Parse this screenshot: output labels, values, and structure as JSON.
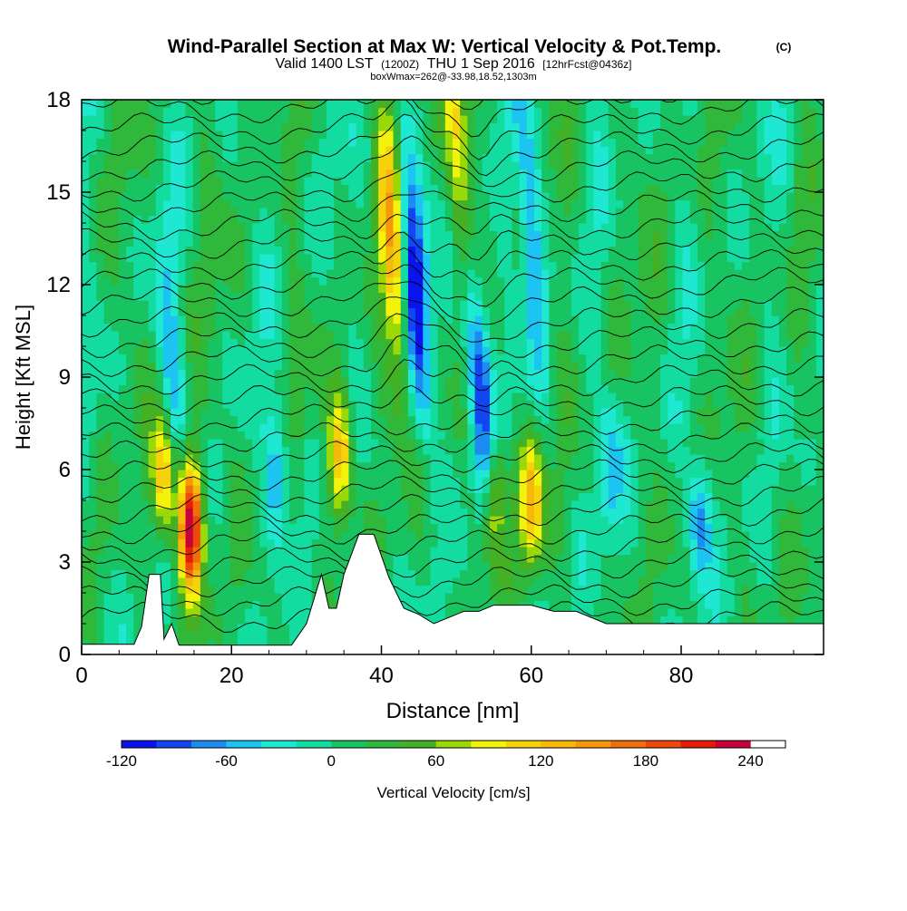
{
  "chart_data": {
    "type": "heatmap",
    "title": "Wind-Parallel Section at Max W: Vertical Velocity & Pot.Temp.",
    "title_mark": "(C)",
    "subtitle_main": "Valid 1400 LST",
    "subtitle_utc": "(1200Z)",
    "subtitle_date": "THU 1 Sep 2016",
    "subtitle_fcst": "[12hrFcst@0436z]",
    "subtitle2": "boxWmax=262@-33.98,18.52,1303m",
    "xlabel": "Distance [nm]",
    "ylabel": "Height [Kft MSL]",
    "xlim": [
      0,
      99
    ],
    "ylim": [
      0,
      18
    ],
    "x_ticks": [
      0,
      20,
      40,
      60,
      80
    ],
    "y_ticks": [
      0,
      3,
      6,
      9,
      12,
      15,
      18
    ],
    "colorbar": {
      "label": "Vertical Velocity [cm/s]",
      "ticks": [
        -120,
        -60,
        0,
        60,
        120,
        180,
        240
      ],
      "levels": [
        -120,
        -100,
        -80,
        -60,
        -40,
        -20,
        0,
        20,
        40,
        60,
        80,
        100,
        120,
        140,
        160,
        180,
        200,
        220,
        240,
        260
      ],
      "colors": [
        "#0a14ee",
        "#1246f0",
        "#1a8cf2",
        "#1cc4f2",
        "#1ee8d2",
        "#12dca0",
        "#18c462",
        "#30b83a",
        "#44b024",
        "#9ad808",
        "#f2f20a",
        "#f6d20a",
        "#f6b80a",
        "#f6980a",
        "#f26e0a",
        "#ee480a",
        "#e61c0a",
        "#c8003c"
      ]
    },
    "terrain_kft": [
      [
        0,
        0.33
      ],
      [
        7,
        0.33
      ],
      [
        8,
        0.9
      ],
      [
        9,
        2.6
      ],
      [
        10.5,
        2.6
      ],
      [
        11,
        0.5
      ],
      [
        12,
        1
      ],
      [
        13,
        0.3
      ],
      [
        28,
        0.3
      ],
      [
        30,
        1
      ],
      [
        32,
        2.6
      ],
      [
        33,
        1.5
      ],
      [
        34,
        1.5
      ],
      [
        35,
        2.6
      ],
      [
        37,
        3.9
      ],
      [
        39,
        3.9
      ],
      [
        41,
        2.5
      ],
      [
        43,
        1.5
      ],
      [
        45,
        1.3
      ],
      [
        47,
        1.0
      ],
      [
        49,
        1.2
      ],
      [
        51,
        1.4
      ],
      [
        53,
        1.4
      ],
      [
        55,
        1.6
      ],
      [
        57,
        1.6
      ],
      [
        60,
        1.6
      ],
      [
        63,
        1.4
      ],
      [
        66,
        1.4
      ],
      [
        70,
        1.0
      ],
      [
        99,
        1.0
      ]
    ],
    "updrafts": [
      {
        "x": 14.5,
        "z": 4.2,
        "w": 240
      },
      {
        "x": 11.0,
        "z": 5.8,
        "w": 120
      },
      {
        "x": 34.5,
        "z": 6.5,
        "w": 120
      },
      {
        "x": 41.5,
        "z": 13.0,
        "w": 120
      },
      {
        "x": 60.0,
        "z": 5.0,
        "w": 120
      },
      {
        "x": 55.0,
        "z": 5.0,
        "w": 100
      },
      {
        "x": 50.0,
        "z": 17.0,
        "w": 100
      }
    ],
    "downdrafts": [
      {
        "x": 44.5,
        "z": 12.0,
        "w": -120
      },
      {
        "x": 53.0,
        "z": 9.0,
        "w": -120
      },
      {
        "x": 26.0,
        "z": 6.0,
        "w": -80
      },
      {
        "x": 82.5,
        "z": 4.5,
        "w": -80
      },
      {
        "x": 70.5,
        "z": 6.0,
        "w": -60
      },
      {
        "x": 60.0,
        "z": 14.0,
        "w": -80
      },
      {
        "x": 12.0,
        "z": 9.0,
        "w": -60
      }
    ]
  }
}
